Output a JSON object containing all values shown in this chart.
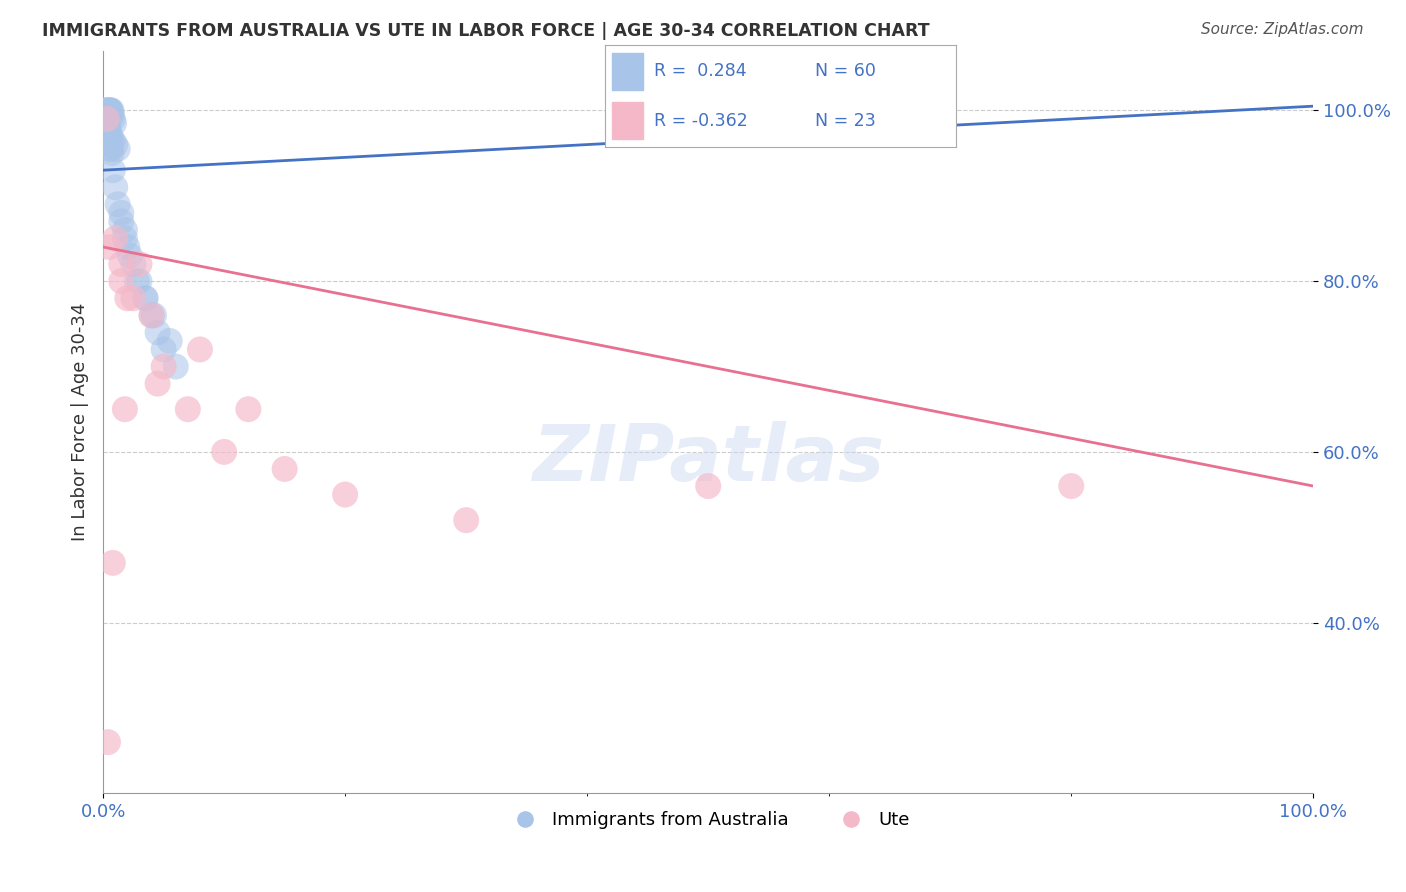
{
  "title": "IMMIGRANTS FROM AUSTRALIA VS UTE IN LABOR FORCE | AGE 30-34 CORRELATION CHART",
  "source": "Source: ZipAtlas.com",
  "ylabel": "In Labor Force | Age 30-34",
  "legend_label1": "Immigrants from Australia",
  "legend_label2": "Ute",
  "R1": "0.284",
  "N1": "60",
  "R2": "-0.362",
  "N2": "23",
  "color_blue": "#a8c4e8",
  "color_pink": "#f4b8c8",
  "color_blue_line": "#4472c4",
  "color_pink_line": "#e87090",
  "color_blue_text": "#4472c4",
  "color_text_dark": "#333333",
  "blue_scatter_x": [
    0.3,
    0.4,
    0.5,
    0.5,
    0.6,
    0.6,
    0.7,
    0.7,
    0.8,
    0.9,
    0.2,
    0.3,
    0.3,
    0.4,
    0.4,
    0.5,
    0.5,
    0.6,
    0.6,
    0.7,
    0.1,
    0.2,
    0.2,
    0.3,
    0.4,
    0.5,
    0.6,
    0.8,
    1.0,
    1.2,
    0.1,
    0.1,
    0.2,
    0.2,
    0.3,
    0.3,
    0.4,
    0.4,
    0.5,
    0.6,
    1.5,
    1.8,
    2.0,
    2.5,
    3.0,
    3.5,
    4.0,
    4.5,
    5.0,
    6.0,
    0.8,
    1.0,
    1.2,
    1.5,
    1.8,
    2.2,
    2.8,
    3.5,
    4.2,
    5.5
  ],
  "blue_scatter_y": [
    100.0,
    100.0,
    100.0,
    100.0,
    100.0,
    100.0,
    100.0,
    99.5,
    99.0,
    98.5,
    99.5,
    99.0,
    98.5,
    98.0,
    97.5,
    97.0,
    96.5,
    96.0,
    95.5,
    95.0,
    100.0,
    99.5,
    99.0,
    98.5,
    98.0,
    97.5,
    97.0,
    96.5,
    96.0,
    95.5,
    100.0,
    99.5,
    99.0,
    98.5,
    98.0,
    97.5,
    97.0,
    96.5,
    96.0,
    95.5,
    88.0,
    86.0,
    84.0,
    82.0,
    80.0,
    78.0,
    76.0,
    74.0,
    72.0,
    70.0,
    93.0,
    91.0,
    89.0,
    87.0,
    85.0,
    83.0,
    80.0,
    78.0,
    76.0,
    73.0
  ],
  "pink_scatter_x": [
    0.3,
    0.5,
    1.0,
    1.5,
    2.0,
    3.0,
    4.0,
    5.0,
    8.0,
    12.0,
    0.8,
    1.5,
    2.5,
    4.5,
    7.0,
    10.0,
    15.0,
    20.0,
    30.0,
    50.0,
    0.4,
    1.8,
    80.0
  ],
  "pink_scatter_y": [
    99.0,
    84.0,
    85.0,
    80.0,
    78.0,
    82.0,
    76.0,
    70.0,
    72.0,
    65.0,
    47.0,
    82.0,
    78.0,
    68.0,
    65.0,
    60.0,
    58.0,
    55.0,
    52.0,
    56.0,
    26.0,
    65.0,
    56.0
  ],
  "xlim": [
    0,
    100
  ],
  "ylim": [
    20,
    107
  ],
  "ytick_vals": [
    40,
    60,
    80,
    100
  ],
  "ytick_labels": [
    "40.0%",
    "60.0%",
    "80.0%",
    "100.0%"
  ],
  "blue_line_x0": 0,
  "blue_line_x1": 100,
  "blue_line_y0": 93.0,
  "blue_line_y1": 100.5,
  "pink_line_x0": 0,
  "pink_line_x1": 100,
  "pink_line_y0": 84.0,
  "pink_line_y1": 56.0
}
